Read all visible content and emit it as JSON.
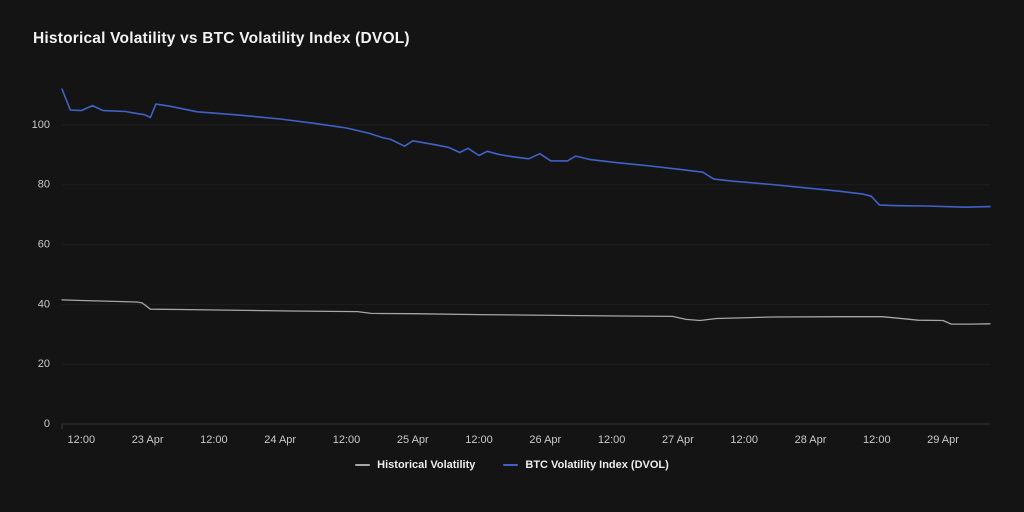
{
  "chart": {
    "colors": {
      "background": "#141414",
      "title": "#f2f2f2",
      "axis_label": "#c9c9c9",
      "gridline": "#1e1e1e",
      "baseline": "#313131",
      "tick": "#3a3a3a"
    }
  },
  "chart_data": {
    "type": "line",
    "title": "Historical Volatility vs BTC Volatility Index (DVOL)",
    "xlabel": "",
    "ylabel": "",
    "x_unit": "hours since 22 Apr 00:00",
    "ylim": [
      0,
      115
    ],
    "grid": "horizontal",
    "legend_position": "bottom",
    "y_ticks": [
      0,
      20,
      40,
      60,
      80,
      100
    ],
    "x_ticks": [
      {
        "h": 12,
        "label": "12:00"
      },
      {
        "h": 24,
        "label": "23 Apr"
      },
      {
        "h": 36,
        "label": "12:00"
      },
      {
        "h": 48,
        "label": "24 Apr"
      },
      {
        "h": 60,
        "label": "12:00"
      },
      {
        "h": 72,
        "label": "25 Apr"
      },
      {
        "h": 84,
        "label": "12:00"
      },
      {
        "h": 96,
        "label": "26 Apr"
      },
      {
        "h": 108,
        "label": "12:00"
      },
      {
        "h": 120,
        "label": "27 Apr"
      },
      {
        "h": 132,
        "label": "12:00"
      },
      {
        "h": 144,
        "label": "28 Apr"
      },
      {
        "h": 156,
        "label": "12:00"
      },
      {
        "h": 168,
        "label": "29 Apr"
      }
    ],
    "series": [
      {
        "id": "historical-volatility",
        "name": "Historical Volatility",
        "color": "#a6a6a6",
        "width": 1.3,
        "points": [
          [
            8.5,
            41.5
          ],
          [
            12,
            41.3
          ],
          [
            18,
            41.0
          ],
          [
            22,
            40.8
          ],
          [
            23,
            40.5
          ],
          [
            24.5,
            38.4
          ],
          [
            30,
            38.3
          ],
          [
            38,
            38.1
          ],
          [
            50,
            37.8
          ],
          [
            62,
            37.6
          ],
          [
            64.5,
            37.0
          ],
          [
            72,
            36.9
          ],
          [
            84,
            36.6
          ],
          [
            100,
            36.3
          ],
          [
            112,
            36.1
          ],
          [
            119,
            36.0
          ],
          [
            121.5,
            35.0
          ],
          [
            124,
            34.6
          ],
          [
            127,
            35.3
          ],
          [
            137,
            35.8
          ],
          [
            150,
            35.9
          ],
          [
            157,
            35.9
          ],
          [
            161,
            35.2
          ],
          [
            163.5,
            34.7
          ],
          [
            168,
            34.6
          ],
          [
            169.5,
            33.4
          ],
          [
            173,
            33.4
          ],
          [
            176.5,
            33.5
          ]
        ]
      },
      {
        "id": "dvol",
        "name": "BTC Volatility Index (DVOL)",
        "color": "#4062c8",
        "width": 1.6,
        "points": [
          [
            8.5,
            112
          ],
          [
            10,
            105
          ],
          [
            12,
            104.8
          ],
          [
            14,
            106.5
          ],
          [
            16,
            104.8
          ],
          [
            20,
            104.5
          ],
          [
            23.5,
            103.4
          ],
          [
            24.5,
            102.5
          ],
          [
            25.5,
            107
          ],
          [
            28,
            106.3
          ],
          [
            33,
            104.4
          ],
          [
            40,
            103.4
          ],
          [
            48,
            102
          ],
          [
            54,
            100.6
          ],
          [
            60,
            99
          ],
          [
            64,
            97.3
          ],
          [
            66.5,
            95.8
          ],
          [
            68,
            95.2
          ],
          [
            70.5,
            92.9
          ],
          [
            72,
            94.7
          ],
          [
            76,
            93.4
          ],
          [
            78.5,
            92.5
          ],
          [
            80.5,
            90.8
          ],
          [
            82,
            92.2
          ],
          [
            84,
            89.8
          ],
          [
            85.5,
            91.2
          ],
          [
            87.5,
            90.2
          ],
          [
            90,
            89.4
          ],
          [
            93,
            88.7
          ],
          [
            95,
            90.4
          ],
          [
            97,
            88
          ],
          [
            100,
            88
          ],
          [
            101.5,
            89.6
          ],
          [
            104,
            88.5
          ],
          [
            109,
            87.4
          ],
          [
            115,
            86.3
          ],
          [
            121,
            85
          ],
          [
            124.5,
            84.2
          ],
          [
            126.5,
            81.9
          ],
          [
            130,
            81.2
          ],
          [
            137,
            80.1
          ],
          [
            143,
            79
          ],
          [
            149,
            77.9
          ],
          [
            153.5,
            76.9
          ],
          [
            155,
            76.2
          ],
          [
            156.5,
            73.2
          ],
          [
            160,
            73
          ],
          [
            165,
            72.9
          ],
          [
            172,
            72.5
          ],
          [
            176.5,
            72.7
          ]
        ]
      }
    ]
  }
}
